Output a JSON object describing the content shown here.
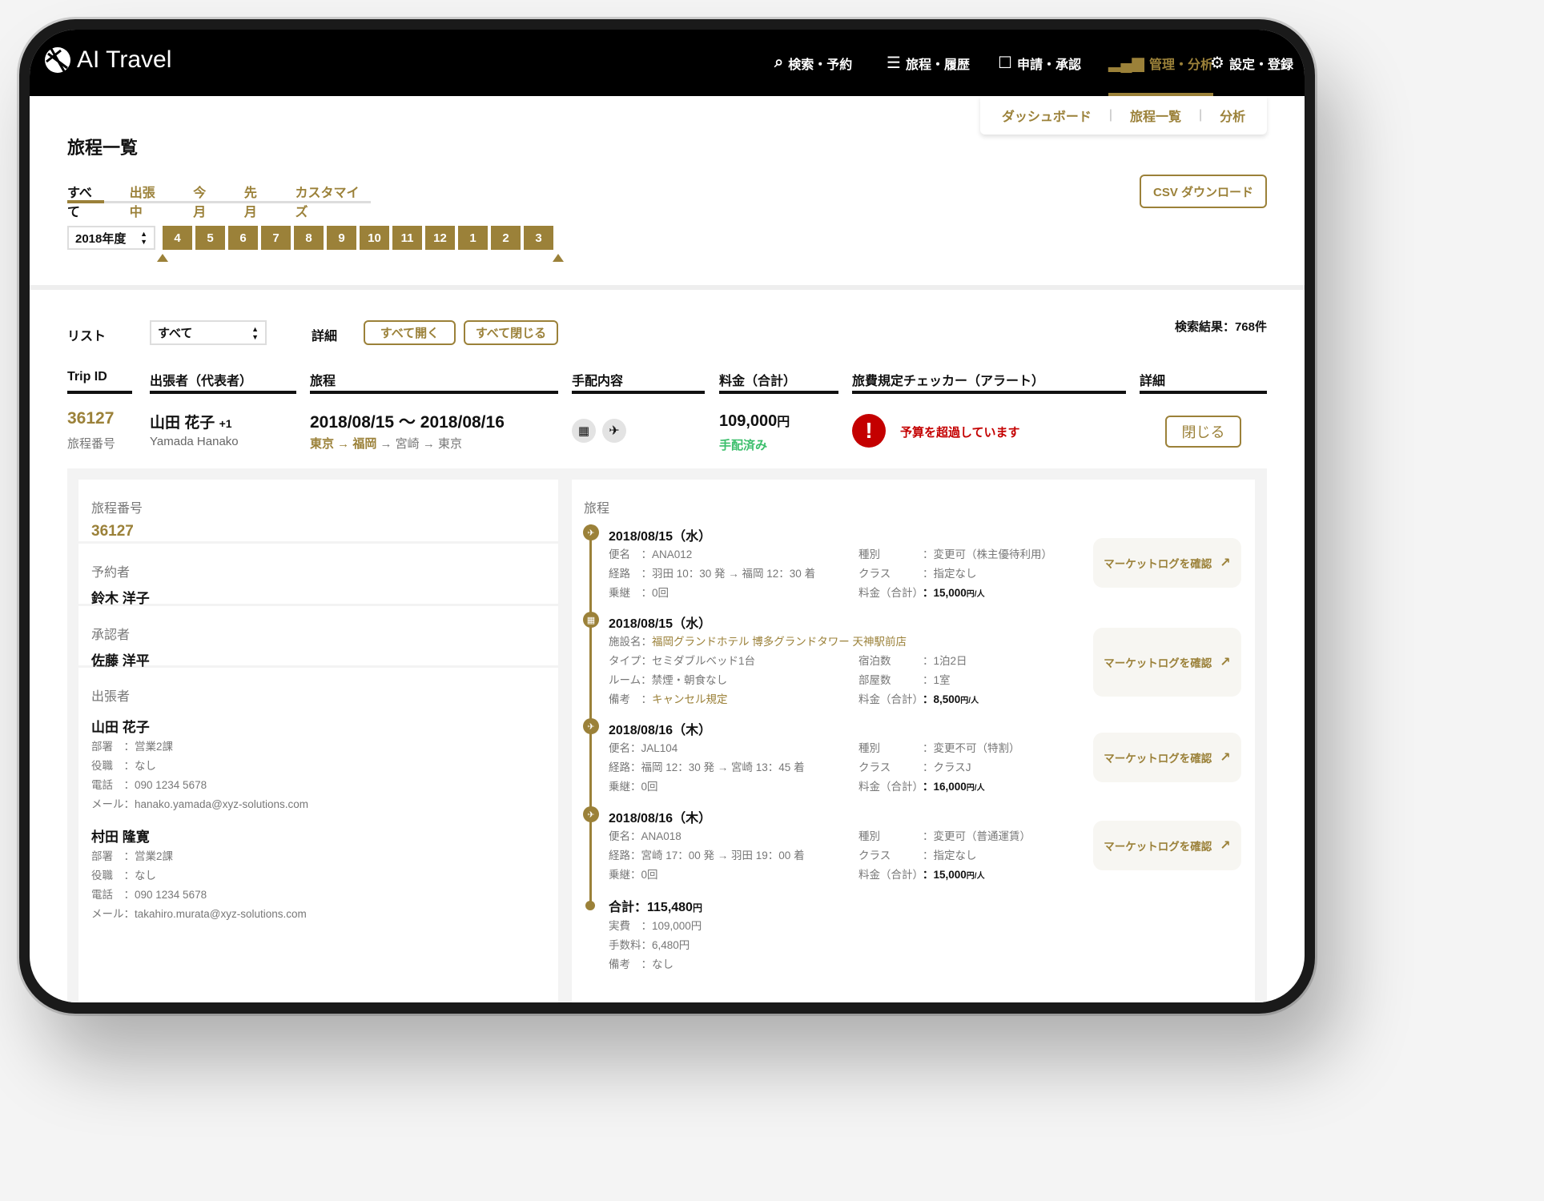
{
  "app": {
    "title": "AI Travel"
  },
  "nav": [
    {
      "label": "検索・予約",
      "icon": "search-icon"
    },
    {
      "label": "旅程・履歴",
      "icon": "document-list-icon"
    },
    {
      "label": "申請・承認",
      "icon": "square-icon"
    },
    {
      "label": "管理・分析",
      "icon": "bar-chart-icon",
      "active": true
    },
    {
      "label": "設定・登録",
      "icon": "gear-icon"
    }
  ],
  "submenu": [
    "ダッシュボード",
    "旅程一覧",
    "分析"
  ],
  "submenu_sep": "|",
  "page": {
    "title": "旅程一覧",
    "csv_label": "CSV ダウンロード"
  },
  "tabs": [
    {
      "label": "すべて",
      "active": true
    },
    {
      "label": "出張中"
    },
    {
      "label": "今月"
    },
    {
      "label": "先月"
    },
    {
      "label": "カスタマイズ"
    }
  ],
  "fiscal_year": "2018年度",
  "months": [
    "4",
    "5",
    "6",
    "7",
    "8",
    "9",
    "10",
    "11",
    "12",
    "1",
    "2",
    "3"
  ],
  "filters": {
    "list_label": "リスト",
    "list_value": "すべて",
    "detail_label": "詳細",
    "open_all": "すべて開く",
    "close_all": "すべて閉じる",
    "results": "検索結果：768件"
  },
  "columns": [
    "Trip ID",
    "出張者（代表者）",
    "旅程",
    "手配内容",
    "料金（合計）",
    "旅費規定チェッカー（アラート）",
    "詳細"
  ],
  "trip": {
    "id": "36127",
    "id_caption": "旅程番号",
    "traveler": "山田 花子",
    "extra": "+1",
    "traveler_en": "Yamada Hanako",
    "dates": "2018/08/15 〜 2018/08/16",
    "route_done": "東京 → 福岡",
    "route_rest": " → 宮崎 → 東京",
    "arrangement_icons": [
      "hotel-icon",
      "airplane-icon"
    ],
    "price": "109,000",
    "price_unit": "円",
    "status": "手配済み",
    "alert": "予算を超過しています",
    "close_label": "閉じる"
  },
  "colors": {
    "accent": "#9b8139",
    "alert": "#c40000",
    "success": "#3cbf6c",
    "header": "#000000"
  },
  "left": {
    "trip_no_label": "旅程番号",
    "trip_no": "36127",
    "booker_label": "予約者",
    "booker": "鈴木 洋子",
    "approver_label": "承認者",
    "approver": "佐藤 洋平",
    "travelers_label": "出張者",
    "travelers": [
      {
        "name": "山田 花子",
        "rows": [
          "部署　：営業2課",
          "役職　：なし",
          "電話　：090 1234 5678",
          "メール：hanako.yamada@xyz-solutions.com"
        ]
      },
      {
        "name": "村田 隆寛",
        "rows": [
          "部署　：営業2課",
          "役職　：なし",
          "電話　：090 1234 5678",
          "メール：takahiro.murata@xyz-solutions.com"
        ]
      }
    ]
  },
  "itinerary": {
    "label": "旅程",
    "market_label": "マーケットログを確認",
    "items": [
      {
        "type": "flight",
        "date": "2018/08/15（水）",
        "left": [
          "便名　：ANA012",
          "経路　：羽田 10：30 発 → 福岡 12：30 着",
          "乗継　：0回"
        ],
        "right_labels": [
          "種別",
          "クラス",
          "料金（合計）"
        ],
        "right_values": [
          "：変更可（株主優待利用）",
          "：指定なし"
        ],
        "price": "15,000",
        "unit": "円/人"
      },
      {
        "type": "hotel",
        "date": "2018/08/15（水）",
        "facility_label": "施設名：",
        "facility": "福岡グランドホテル 博多グランドタワー 天神駅前店",
        "left": [
          "タイプ：セミダブルベッド1台",
          "ルーム：禁煙・朝食なし"
        ],
        "note_label": "備考　：",
        "note": "キャンセル規定",
        "right_labels": [
          "宿泊数",
          "部屋数",
          "料金（合計）"
        ],
        "right_values": [
          "：1泊2日",
          "：1室"
        ],
        "price": "8,500",
        "unit": "円/人"
      },
      {
        "type": "flight",
        "date": "2018/08/16（木）",
        "left": [
          "便名：JAL104",
          "経路：福岡 12：30 発 → 宮崎 13：45 着",
          "乗継：0回"
        ],
        "right_labels": [
          "種別",
          "クラス",
          "料金（合計）"
        ],
        "right_values": [
          "：変更不可（特割）",
          "：クラスJ"
        ],
        "price": "16,000",
        "unit": "円/人"
      },
      {
        "type": "flight",
        "date": "2018/08/16（木）",
        "left": [
          "便名：ANA018",
          "経路：宮崎 17：00 発 → 羽田 19：00 着",
          "乗継：0回"
        ],
        "right_labels": [
          "種別",
          "クラス",
          "料金（合計）"
        ],
        "right_values": [
          "：変更可（普通運賃）",
          "：指定なし"
        ],
        "price": "15,000",
        "unit": "円/人"
      }
    ],
    "total": "合計：115,480",
    "total_unit": "円",
    "total_rows": [
      "実費　：109,000円",
      "手数料：6,480円",
      "備考　：なし"
    ]
  }
}
